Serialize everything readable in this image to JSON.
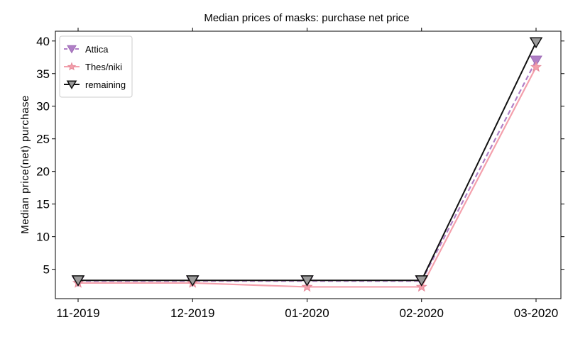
{
  "chart_data": {
    "type": "line",
    "title": "Median prices of masks: purchase net price",
    "xlabel": "",
    "ylabel": "Median price(net) purchase",
    "categories": [
      "11-2019",
      "12-2019",
      "01-2020",
      "02-2020",
      "03-2020"
    ],
    "ylim": [
      0.5,
      41.5
    ],
    "yticks": [
      5,
      10,
      15,
      20,
      25,
      30,
      35,
      40
    ],
    "grid": false,
    "legend_position": "top-left",
    "series": [
      {
        "name": "Attica",
        "values": [
          3.2,
          3.2,
          3.2,
          3.2,
          37
        ],
        "color": "#b07fc6",
        "marker": "triangle-down",
        "dash": "dashed"
      },
      {
        "name": "Thes/niki",
        "values": [
          2.9,
          2.9,
          2.3,
          2.3,
          36
        ],
        "color": "#f4a0ac",
        "marker": "star",
        "dash": "solid"
      },
      {
        "name": "remaining",
        "values": [
          3.3,
          3.3,
          3.3,
          3.3,
          39.8
        ],
        "color": "#111111",
        "marker": "triangle-down",
        "dash": "solid"
      }
    ]
  }
}
